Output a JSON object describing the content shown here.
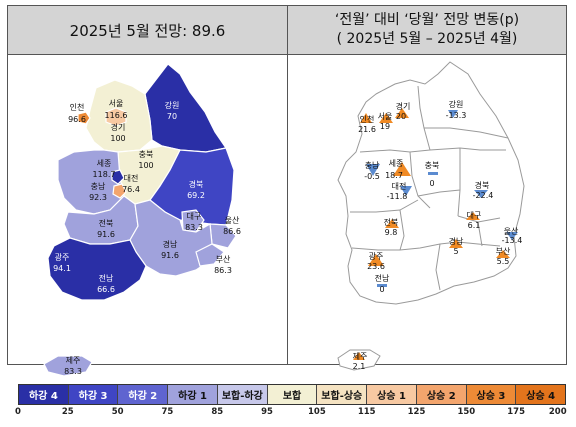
{
  "left_title": "2025년 5월 전망: 89.6",
  "right_title_line1": "‘전월’ 대비 ‘당월’ 전망 변동(p)",
  "right_title_line2": "( 2025년 5월 –   2025년 4월)",
  "colors": {
    "down4": "#2a2fa6",
    "down3": "#3f45c4",
    "down2": "#5f64d0",
    "down1": "#a0a2dc",
    "flat_down": "#c7c8ea",
    "flat": "#f3f0d4",
    "flat_up": "#f5e3c2",
    "up1": "#f7c9a2",
    "up2": "#f3a56d",
    "up3": "#ed8a36",
    "up4": "#e3741c",
    "down_marker": "#5b8bd0",
    "up_marker": "#f08a24"
  },
  "regions": [
    {
      "name": "인천",
      "value": "96.6",
      "change": "21.6",
      "dir": "up"
    },
    {
      "name": "서울",
      "value": "116.6",
      "change": "19",
      "dir": "up"
    },
    {
      "name": "경기",
      "value": "100",
      "change": "20",
      "dir": "up"
    },
    {
      "name": "강원",
      "value": "70",
      "change": "-13.3",
      "dir": "down"
    },
    {
      "name": "충북",
      "value": "100",
      "change": "0",
      "dir": "flat"
    },
    {
      "name": "세종",
      "value": "118.7",
      "change": "18.7",
      "dir": "up"
    },
    {
      "name": "충남",
      "value": "92.3",
      "change": "-0.5",
      "dir": "down"
    },
    {
      "name": "대전",
      "value": "76.4",
      "change": "-11.8",
      "dir": "down"
    },
    {
      "name": "경북",
      "value": "69.2",
      "change": "-22.4",
      "dir": "down"
    },
    {
      "name": "대구",
      "value": "83.3",
      "change": "6.1",
      "dir": "up"
    },
    {
      "name": "울산",
      "value": "86.6",
      "change": "-13.4",
      "dir": "down"
    },
    {
      "name": "전북",
      "value": "91.6",
      "change": "9.8",
      "dir": "up"
    },
    {
      "name": "경남",
      "value": "91.6",
      "change": "5",
      "dir": "up"
    },
    {
      "name": "부산",
      "value": "86.3",
      "change": "5.5",
      "dir": "up"
    },
    {
      "name": "광주",
      "value": "94.1",
      "change": "23.6",
      "dir": "up"
    },
    {
      "name": "전남",
      "value": "66.6",
      "change": "0",
      "dir": "flat"
    },
    {
      "name": "제주",
      "value": "83.3",
      "change": "2.1",
      "dir": "up"
    }
  ],
  "legend": {
    "labels": [
      "하강 4",
      "하강 3",
      "하강 2",
      "하강 1",
      "보합-하강",
      "보합",
      "보합-상승",
      "상승 1",
      "상승 2",
      "상승 3",
      "상승 4"
    ],
    "ticks": [
      "0",
      "25",
      "50",
      "75",
      "85",
      "95",
      "105",
      "115",
      "125",
      "150",
      "175",
      "200"
    ]
  }
}
